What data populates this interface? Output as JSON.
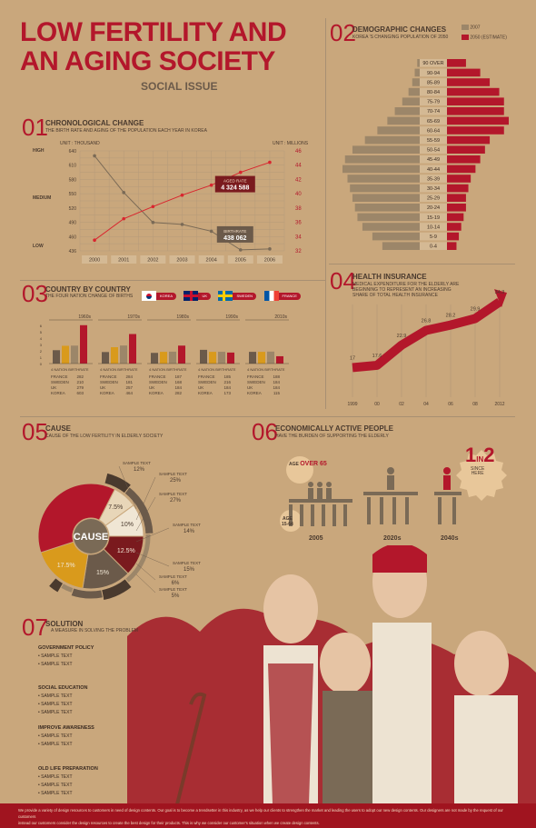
{
  "header": {
    "title_line1": "LOW FERTILITY AND",
    "title_line2": "AN AGING SOCIETY",
    "subtitle": "SOCIAL ISSUE"
  },
  "colors": {
    "background": "#c9a77c",
    "red": "#b3172b",
    "dark_brown": "#6b5a4a",
    "tan": "#9c8669",
    "orange": "#d99a1c"
  },
  "watermark": "envato",
  "section1": {
    "num": "01",
    "title": "CHRONOLOGICAL CHANGE",
    "sub": "THE BIRTH RATE AND AGING OF THE POPULATION EACH YEAR IN KOREA",
    "unit_left": "UNIT : THOUSAND",
    "unit_right": "UNIT : MILLIONS",
    "level_high": "HIGH",
    "level_medium": "MEDIUM",
    "level_low": "LOW",
    "callout_aged_label": "AGED RATE",
    "callout_aged_value": "4 324 588",
    "callout_birth_label": "BIRTHRATE",
    "callout_birth_value": "438 062"
  },
  "section2": {
    "num": "02",
    "title": "DEMOGRAPHIC CHANGES",
    "sub": "KOREA 'S CHANGING POPULATION OF 2050",
    "legend_2007": "2007",
    "legend_2050": "2050 (ESTIMATE)"
  },
  "section3": {
    "num": "03",
    "title": "COUNTRY BY COUNTRY",
    "sub": "THE FOUR NATION CHANGE OF BIRTHS",
    "flags": [
      {
        "name": "KOREA",
        "icon": "korea-flag-icon"
      },
      {
        "name": "UK",
        "icon": "uk-flag-icon"
      },
      {
        "name": "SWEDEN",
        "icon": "sweden-flag-icon"
      },
      {
        "name": "FRANCE",
        "icon": "france-flag-icon"
      }
    ],
    "panel_caption": "4 NATION BIRTHRATE"
  },
  "section4": {
    "num": "04",
    "title": "HEALTH INSURANCE",
    "sub_line1": "MEDICAL EXPENDITURE FOR THE ELDERLY ARE",
    "sub_line2": "BEGINNING TO REPRESENT AN INCREASING",
    "sub_line3": "SHARE OF TOTAL HEALTH INSURANCE"
  },
  "section5": {
    "num": "05",
    "title": "CAUSE",
    "sub": "CAUSE OF THE LOW FERTILITY IN ELDERLY SOCIETY",
    "center": "CAUSE",
    "sample_text": "SAMPLE TEXT",
    "callouts": [
      {
        "label": "SAMPLE TEXT",
        "value": "12%"
      },
      {
        "label": "SAMPLE TEXT",
        "value": "25%"
      },
      {
        "label": "SAMPLE TEXT",
        "value": "27%"
      },
      {
        "label": "SAMPLE TEXT",
        "value": "14%"
      },
      {
        "label": "SAMPLE TEXT",
        "value": "15%"
      },
      {
        "label": "SAMPLE TEXT",
        "value": "6%"
      },
      {
        "label": "SAMPLE TEXT",
        "value": "5%"
      }
    ]
  },
  "section6": {
    "num": "06",
    "title": "ECONOMICALLY ACTIVE PEOPLE",
    "sub": "HAVE THE BURDEN OF SUPPORTING THE ELDERLY",
    "age_over_label": "AGE",
    "age_over_value": "OVER 65",
    "age_range_label": "AGE",
    "age_range_value": "15-64",
    "ratio_one": "1",
    "ratio_in": "IN",
    "ratio_two": "2",
    "ratio_caption": "SINCE",
    "ratio_caption2": "HERE",
    "years": [
      "2005",
      "2020s",
      "2040s"
    ]
  },
  "section7": {
    "num": "07",
    "title": "SOLUTION",
    "sub": "A MEASURE IN SOLVING THE PROBLEM",
    "groups": [
      {
        "head": "GOVERNMENT POLICY",
        "items": [
          "SAMPLE TEXT",
          "SAMPLE TEXT"
        ]
      },
      {
        "head": "SOCIAL EDUCATION",
        "items": [
          "SAMPLE TEXT",
          "SAMPLE TEXT",
          "SAMPLE TEXT"
        ]
      },
      {
        "head": "IMPROVE AWARENESS",
        "items": [
          "SAMPLE TEXT",
          "SAMPLE TEXT"
        ]
      },
      {
        "head": "OLD LIFE PREPARATION",
        "items": [
          "SAMPLE TEXT",
          "SAMPLE TEXT",
          "SAMPLE TEXT"
        ]
      }
    ]
  },
  "footer": {
    "line1": "We provide a variety of design resources to customers in need of design contents. Our goal is to become a trendsetter in this industry, as we help our clients to strengthen the market and leading the users to adopt our new design contents. Our designers are not made by the request of our customers",
    "line2": "instead our customers consider the design resources to create the best design for their products. This is why we consider our customer's situation when we create design contents."
  },
  "chart_data": [
    {
      "type": "line",
      "title": "CHRONOLOGICAL CHANGE",
      "x": [
        "2000",
        "2001",
        "2002",
        "2003",
        "2004",
        "2005",
        "2006"
      ],
      "y_left_ticks": [
        "640",
        "610",
        "580",
        "550",
        "520",
        "490",
        "460",
        "436"
      ],
      "y_right_ticks": [
        "46",
        "44",
        "42",
        "40",
        "38",
        "36",
        "34",
        "32"
      ],
      "ylim_left": [
        436,
        640
      ],
      "ylim_right": [
        32,
        46
      ],
      "series": [
        {
          "name": "BIRTHRATE",
          "axis": "left",
          "values": [
            630,
            555,
            494,
            490,
            476,
            438,
            440
          ],
          "color": "#7a6a56"
        },
        {
          "name": "AGED RATE",
          "axis": "right",
          "values": [
            33.5,
            36.5,
            38.2,
            39.8,
            41.2,
            43.0,
            44.4
          ],
          "color": "#d9252e"
        }
      ]
    },
    {
      "type": "bar",
      "title": "DEMOGRAPHIC CHANGES",
      "orientation": "horizontal",
      "categories": [
        "90 OVER",
        "90-94",
        "85-89",
        "80-84",
        "75-79",
        "70-74",
        "65-69",
        "60-64",
        "55-59",
        "50-54",
        "45-49",
        "40-44",
        "35-39",
        "30-34",
        "25-29",
        "20-24",
        "15-19",
        "10-14",
        "5-9",
        "0-4"
      ],
      "series": [
        {
          "name": "2007",
          "values": [
            2,
            4,
            6,
            9,
            14,
            20,
            26,
            34,
            44,
            54,
            60,
            62,
            58,
            56,
            54,
            52,
            50,
            46,
            38,
            30
          ]
        },
        {
          "name": "2050 (ESTIMATE)",
          "values": [
            8,
            14,
            18,
            22,
            24,
            24,
            26,
            24,
            18,
            16,
            14,
            12,
            10,
            9,
            8,
            8,
            7,
            6,
            5,
            4
          ]
        }
      ]
    },
    {
      "type": "bar",
      "title": "COUNTRY BY COUNTRY",
      "categories": [
        "1960s",
        "1970s",
        "1980s",
        "1990s",
        "2010s"
      ],
      "countries": [
        "FRANCE",
        "SWEDEN",
        "UK",
        "KOREA"
      ],
      "series": [
        {
          "name": "FRANCE",
          "values": [
            2.82,
            2.84,
            1.87,
            1.85,
            1.88
          ]
        },
        {
          "name": "SWEDEN",
          "values": [
            2.1,
            1.81,
            1.68,
            2.16,
            1.84
          ]
        },
        {
          "name": "UK",
          "values": [
            2.79,
            2.57,
            1.84,
            1.84,
            1.84
          ]
        },
        {
          "name": "KOREA",
          "values": [
            6.03,
            4.64,
            2.82,
            1.73,
            1.15
          ]
        }
      ]
    },
    {
      "type": "line",
      "title": "HEALTH INSURANCE",
      "x": [
        "1999",
        "00",
        "02",
        "04",
        "06",
        "08",
        "2012"
      ],
      "values": [
        17.0,
        17.6,
        22.9,
        26.8,
        28.2,
        29.9,
        34.3
      ]
    },
    {
      "type": "pie",
      "title": "CAUSE",
      "inner": [
        {
          "label": "7.5%",
          "value": 7.5
        },
        {
          "label": "10%",
          "value": 10
        },
        {
          "label": "12.5%",
          "value": 12.5
        },
        {
          "label": "15%",
          "value": 15
        },
        {
          "label": "17.5%",
          "value": 17.5
        },
        {
          "label": "",
          "value": 37.5
        }
      ],
      "outer": [
        {
          "label": "12%",
          "value": 12
        },
        {
          "label": "25%",
          "value": 25
        },
        {
          "label": "27%",
          "value": 27
        },
        {
          "label": "14%",
          "value": 14
        },
        {
          "label": "15%",
          "value": 15
        },
        {
          "label": "6%",
          "value": 6
        },
        {
          "label": "5%",
          "value": 5
        }
      ]
    }
  ]
}
